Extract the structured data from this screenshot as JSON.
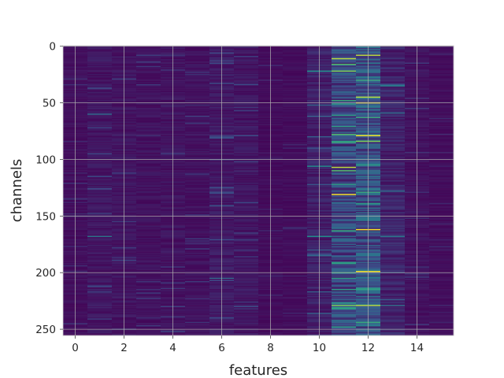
{
  "chart_data": {
    "type": "heatmap",
    "title": "",
    "xlabel": "features",
    "ylabel": "channels",
    "n_features": 16,
    "n_channels": 256,
    "xlim": [
      -0.5,
      15.5
    ],
    "ylim": [
      255.5,
      -0.5
    ],
    "y_inverted": true,
    "grid": true,
    "colormap": "viridis",
    "value_range": [
      0,
      1
    ],
    "x_ticks": [
      0,
      2,
      4,
      6,
      8,
      10,
      12,
      14
    ],
    "x_tick_labels": [
      "0",
      "2",
      "4",
      "6",
      "8",
      "10",
      "12",
      "14"
    ],
    "y_ticks": [
      0,
      50,
      100,
      150,
      200,
      250
    ],
    "y_tick_labels": [
      "0",
      "50",
      "100",
      "150",
      "200",
      "250"
    ],
    "column_mean_intensity": [
      0.06,
      0.09,
      0.08,
      0.07,
      0.08,
      0.07,
      0.1,
      0.09,
      0.05,
      0.05,
      0.13,
      0.3,
      0.36,
      0.14,
      0.07,
      0.05
    ],
    "bright_cells": [
      {
        "feature": 11,
        "channel": 11,
        "value": 0.9
      },
      {
        "feature": 11,
        "channel": 16,
        "value": 0.7
      },
      {
        "feature": 11,
        "channel": 22,
        "value": 0.8
      },
      {
        "feature": 11,
        "channel": 48,
        "value": 0.6
      },
      {
        "feature": 11,
        "channel": 78,
        "value": 0.7
      },
      {
        "feature": 11,
        "channel": 85,
        "value": 0.6
      },
      {
        "feature": 11,
        "channel": 107,
        "value": 0.9
      },
      {
        "feature": 11,
        "channel": 110,
        "value": 0.7
      },
      {
        "feature": 11,
        "channel": 131,
        "value": 1.0
      },
      {
        "feature": 11,
        "channel": 163,
        "value": 0.6
      },
      {
        "feature": 11,
        "channel": 200,
        "value": 0.6
      },
      {
        "feature": 11,
        "channel": 229,
        "value": 0.8
      },
      {
        "feature": 12,
        "channel": 8,
        "value": 0.9
      },
      {
        "feature": 12,
        "channel": 30,
        "value": 0.6
      },
      {
        "feature": 12,
        "channel": 45,
        "value": 0.9
      },
      {
        "feature": 12,
        "channel": 50,
        "value": 1.0
      },
      {
        "feature": 12,
        "channel": 63,
        "value": 0.6
      },
      {
        "feature": 12,
        "channel": 79,
        "value": 1.0
      },
      {
        "feature": 12,
        "channel": 84,
        "value": 0.8
      },
      {
        "feature": 12,
        "channel": 129,
        "value": 0.6
      },
      {
        "feature": 12,
        "channel": 162,
        "value": 1.0
      },
      {
        "feature": 12,
        "channel": 199,
        "value": 1.0
      },
      {
        "feature": 12,
        "channel": 229,
        "value": 0.9
      },
      {
        "feature": 12,
        "channel": 244,
        "value": 0.6
      },
      {
        "feature": 10,
        "channel": 22,
        "value": 0.5
      },
      {
        "feature": 10,
        "channel": 106,
        "value": 0.5
      },
      {
        "feature": 10,
        "channel": 168,
        "value": 0.5
      },
      {
        "feature": 13,
        "channel": 35,
        "value": 0.45
      },
      {
        "feature": 13,
        "channel": 168,
        "value": 0.4
      },
      {
        "feature": 1,
        "channel": 60,
        "value": 0.35
      },
      {
        "feature": 1,
        "channel": 168,
        "value": 0.4
      },
      {
        "feature": 6,
        "channel": 205,
        "value": 0.35
      }
    ]
  }
}
